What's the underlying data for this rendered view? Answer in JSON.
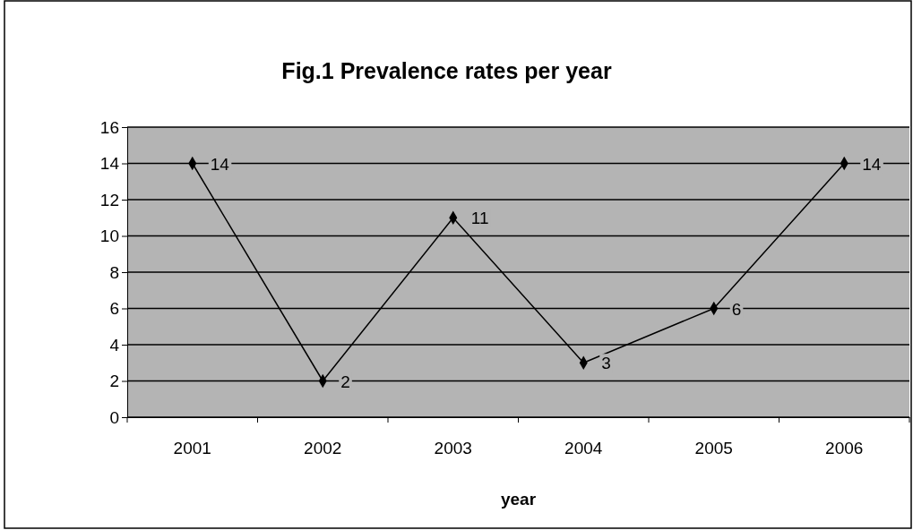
{
  "chart_data": {
    "type": "line",
    "title": "Fig.1 Prevalence rates per year",
    "xlabel": "year",
    "categories": [
      "2001",
      "2002",
      "2003",
      "2004",
      "2005",
      "2006"
    ],
    "series": [
      {
        "color": "#000000",
        "values": [
          14,
          2,
          11,
          3,
          6,
          14
        ]
      }
    ],
    "ylim": [
      0,
      16
    ],
    "yticks": [
      0,
      2,
      4,
      6,
      8,
      10,
      12,
      14,
      16
    ],
    "grid": "y",
    "marker": "diamond",
    "line_style": "solid",
    "data_labels": true
  }
}
